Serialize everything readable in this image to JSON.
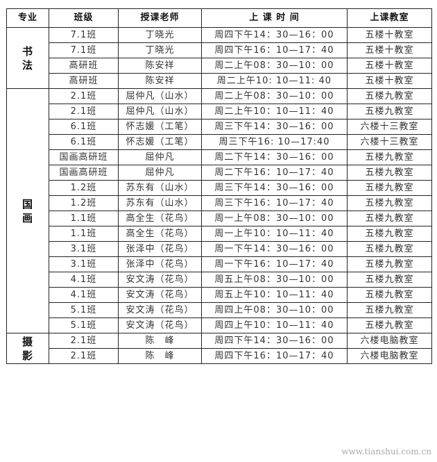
{
  "headers": [
    "专业",
    "班级",
    "授课老师",
    "上 课 时 间",
    "上课教室"
  ],
  "groups": [
    {
      "major": "书法",
      "rows": [
        [
          "7.1班",
          "丁晓光",
          "周四下午14：30—16：00",
          "五楼十教室"
        ],
        [
          "7.1班",
          "丁晓光",
          "周四下午16：10—17：40",
          "五楼十教室"
        ],
        [
          "高研班",
          "陈安祥",
          "周二上午08：30—10：00",
          "五楼十教室"
        ],
        [
          "高研班",
          "陈安祥",
          "周二上午10: 10—11: 40",
          "五楼十教室"
        ]
      ]
    },
    {
      "major": "国画",
      "rows": [
        [
          "2.1班",
          "屈仲凡（山水）",
          "周二上午08：30—10：00",
          "五楼九教室"
        ],
        [
          "2.1班",
          "屈仲凡（山水）",
          "周二上午10：10—11：40",
          "五楼九教室"
        ],
        [
          "6.1班",
          "怀志媛（工笔）",
          "周三下午14：30—16：00",
          "六楼十三教室"
        ],
        [
          "6.1班",
          "怀志媛（工笔）",
          "周三下午16: 10—17:40",
          "六楼十三教室"
        ],
        [
          "国画高研班",
          "屈仲凡",
          "周二下午14：30—16：00",
          "五楼九教室"
        ],
        [
          "国画高研班",
          "屈仲凡",
          "周二下午16：10—17：40",
          "五楼九教室"
        ],
        [
          "1.2班",
          "苏东有（山水）",
          "周三下午14：30—16：00",
          "五楼九教室"
        ],
        [
          "1.2班",
          "苏东有（山水）",
          "周三下午16：10—17：40",
          "五楼九教室"
        ],
        [
          "1.1班",
          "高全生（花鸟）",
          "周一上午08：30—10：00",
          "五楼九教室"
        ],
        [
          "1.1班",
          "高全生（花鸟）",
          "周一上午10：10—11：40",
          "五楼九教室"
        ],
        [
          "3.1班",
          "张泽中（花鸟）",
          "周一下午14：30—16：00",
          "五楼九教室"
        ],
        [
          "3.1班",
          "张泽中（花鸟）",
          "周一下午16：10—17：40",
          "五楼九教室"
        ],
        [
          "4.1班",
          "安文涛（花鸟）",
          "周五上午08：30—10：00",
          "五楼九教室"
        ],
        [
          "4.1班",
          "安文涛（花鸟）",
          "周五上午10：10—11：40",
          "五楼九教室"
        ],
        [
          "5.1班",
          "安文涛（花鸟）",
          "周四上午08：30—10：00",
          "五楼九教室"
        ],
        [
          "5.1班",
          "安文涛（花鸟）",
          "周四上午10：10—11：40",
          "五楼九教室"
        ]
      ]
    },
    {
      "major": "摄影",
      "rows": [
        [
          "2.1班",
          "陈　峰",
          "周四下午14：30—16：00",
          "六楼电脑教室"
        ],
        [
          "2.1班",
          "陈　峰",
          "周四下午16：10—17：40",
          "六楼电脑教室"
        ]
      ]
    }
  ],
  "watermark": "www.tianshui.com.cn"
}
